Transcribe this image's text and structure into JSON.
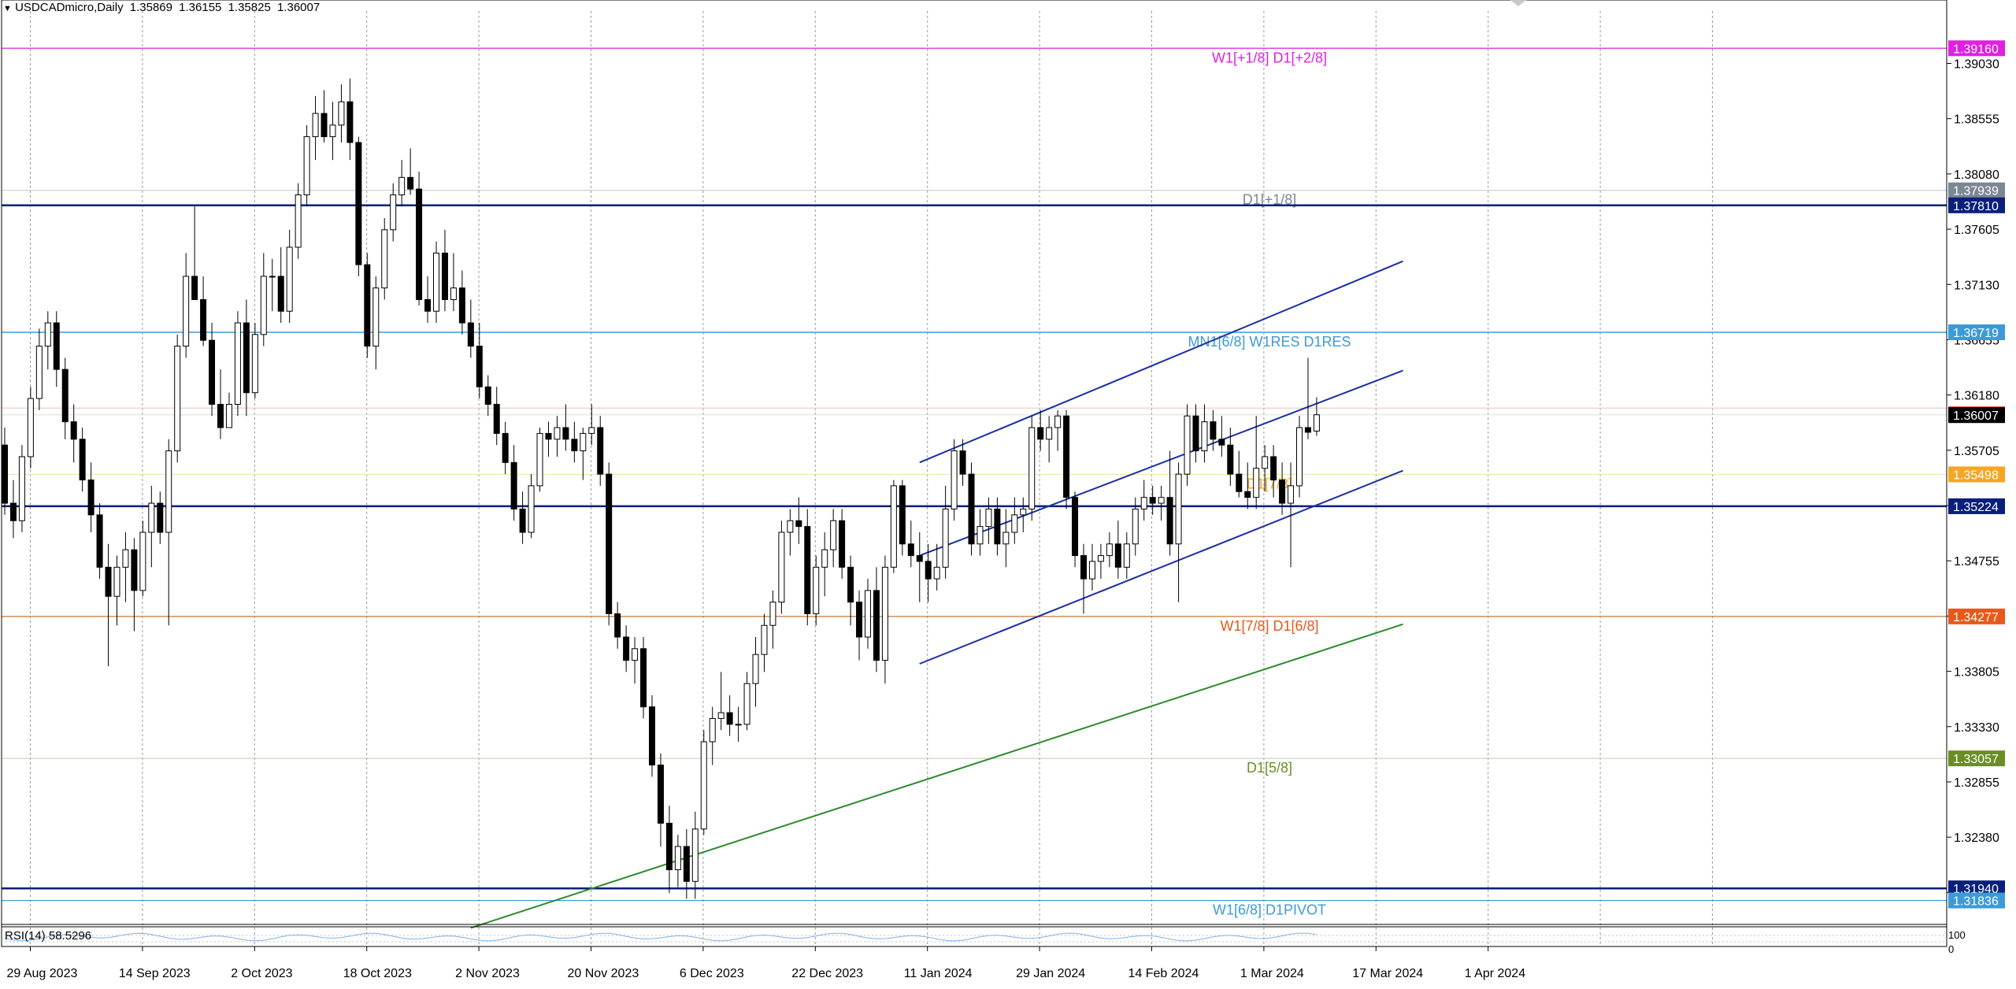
{
  "header": {
    "marker_icon": "triangle-down-icon",
    "symbol": "USDCADmicro,Daily",
    "open": "1.35869",
    "high": "1.36155",
    "low": "1.35825",
    "close": "1.36007"
  },
  "rsi_panel": {
    "label": "RSI(14) 58.5296",
    "scale_top": "100",
    "scale_bottom": "0"
  },
  "chart_data": {
    "type": "candlestick",
    "symbol": "USDCADmicro",
    "timeframe": "Daily",
    "ylim": [
      1.3163,
      1.3948
    ],
    "y_ticks": [
      "1.39030",
      "1.38555",
      "1.38080",
      "1.37605",
      "1.37130",
      "1.36655",
      "1.36180",
      "1.35705",
      "1.35230",
      "1.34755",
      "1.34280",
      "1.33805",
      "1.33330",
      "1.32855",
      "1.32380",
      "1.31905"
    ],
    "x_ticks": [
      "29 Aug 2023",
      "14 Sep 2023",
      "2 Oct 2023",
      "18 Oct 2023",
      "2 Nov 2023",
      "20 Nov 2023",
      "6 Dec 2023",
      "22 Dec 2023",
      "11 Jan 2024",
      "29 Jan 2024",
      "14 Feb 2024",
      "1 Mar 2024",
      "17 Mar 2024",
      "1 Apr 2024"
    ],
    "levels": [
      {
        "value": 1.3916,
        "tag": "1.39160",
        "label": "W1[+1/8] D1[+2/8]",
        "color": "#e020e0",
        "tag_bg": "#e020e0",
        "width": 1.3
      },
      {
        "value": 1.37939,
        "tag": "1.37939",
        "label": "D1[+1/8]",
        "color": "#c0c8c0",
        "tag_bg": "#7b8794",
        "width": 1
      },
      {
        "value": 1.3781,
        "tag": "1.37810",
        "label": "",
        "color": "#0a1f7a",
        "tag_bg": "#0a1f7a",
        "width": 2.5
      },
      {
        "value": 1.36719,
        "tag": "1.36719",
        "label": "MN1[6/8] W1RES D1RES",
        "color": "#3d9ad8",
        "tag_bg": "#3d9ad8",
        "width": 1.5
      },
      {
        "value": 1.36068,
        "tag": "",
        "label": "",
        "color": "#e3c7b8",
        "tag_bg": "#e83b1a",
        "width": 1
      },
      {
        "value": 1.36007,
        "tag": "1.36007",
        "label": "",
        "color": "#e8e8e8",
        "tag_bg": "#000000",
        "width": 0
      },
      {
        "value": 1.35498,
        "tag": "1.35498",
        "label": "D1[7/8]",
        "color": "#efe3a0",
        "tag_bg": "#f5a623",
        "width": 1
      },
      {
        "value": 1.35224,
        "tag": "1.35224",
        "label": "",
        "color": "#0a1f7a",
        "tag_bg": "#0a1f7a",
        "width": 2.5
      },
      {
        "value": 1.34277,
        "tag": "1.34277",
        "label": "W1[7/8] D1[6/8]",
        "color": "#c8773a",
        "tag_bg": "#e8581a",
        "width": 1.2
      },
      {
        "value": 1.33057,
        "tag": "1.33057",
        "label": "D1[5/8]",
        "color": "#c8cba8",
        "tag_bg": "#6b8e23",
        "width": 1
      },
      {
        "value": 1.3194,
        "tag": "1.31940",
        "label": "",
        "color": "#0a1f7a",
        "tag_bg": "#0a1f7a",
        "width": 2.5
      },
      {
        "value": 1.31836,
        "tag": "1.31836",
        "label": "W1[6/8] D1PIVOT",
        "color": "#3d9ad8",
        "tag_bg": "#3d9ad8",
        "width": 1.2
      }
    ],
    "trendlines": [
      {
        "from": [
          106,
          1.356
        ],
        "to": [
          162,
          1.3733
        ],
        "color": "#1a2fa0"
      },
      {
        "from": [
          106,
          1.348
        ],
        "to": [
          162,
          1.3639
        ],
        "color": "#1a2fa0"
      },
      {
        "from": [
          106,
          1.3387
        ],
        "to": [
          162,
          1.3553
        ],
        "color": "#1a2fa0"
      },
      {
        "from": [
          54,
          1.316
        ],
        "to": [
          162,
          1.3421
        ],
        "color": "#2e8b2e"
      }
    ],
    "candles": [
      [
        1.3575,
        1.359,
        1.3515,
        1.3525
      ],
      [
        1.3525,
        1.3545,
        1.3495,
        1.351
      ],
      [
        1.351,
        1.3575,
        1.35,
        1.3565
      ],
      [
        1.3565,
        1.3625,
        1.3555,
        1.3615
      ],
      [
        1.3615,
        1.3675,
        1.3605,
        1.366
      ],
      [
        1.366,
        1.369,
        1.364,
        1.368
      ],
      [
        1.368,
        1.369,
        1.3625,
        1.364
      ],
      [
        1.364,
        1.365,
        1.358,
        1.3595
      ],
      [
        1.3595,
        1.361,
        1.356,
        1.358
      ],
      [
        1.358,
        1.359,
        1.3535,
        1.3545
      ],
      [
        1.3545,
        1.356,
        1.35,
        1.3515
      ],
      [
        1.3515,
        1.3525,
        1.346,
        1.347
      ],
      [
        1.347,
        1.349,
        1.3385,
        1.3445
      ],
      [
        1.3445,
        1.348,
        1.342,
        1.347
      ],
      [
        1.347,
        1.35,
        1.344,
        1.3485
      ],
      [
        1.3485,
        1.3495,
        1.3415,
        1.345
      ],
      [
        1.345,
        1.351,
        1.3445,
        1.35
      ],
      [
        1.35,
        1.354,
        1.347,
        1.3525
      ],
      [
        1.3525,
        1.3535,
        1.349,
        1.35
      ],
      [
        1.35,
        1.358,
        1.342,
        1.357
      ],
      [
        1.357,
        1.367,
        1.356,
        1.366
      ],
      [
        1.366,
        1.374,
        1.365,
        1.372
      ],
      [
        1.372,
        1.378,
        1.37,
        1.37
      ],
      [
        1.37,
        1.372,
        1.366,
        1.3665
      ],
      [
        1.3665,
        1.368,
        1.36,
        1.361
      ],
      [
        1.361,
        1.364,
        1.358,
        1.359
      ],
      [
        1.359,
        1.362,
        1.359,
        1.361
      ],
      [
        1.361,
        1.369,
        1.36,
        1.368
      ],
      [
        1.368,
        1.37,
        1.36,
        1.362
      ],
      [
        1.362,
        1.368,
        1.3615,
        1.367
      ],
      [
        1.367,
        1.374,
        1.366,
        1.372
      ],
      [
        1.372,
        1.3735,
        1.369,
        1.372
      ],
      [
        1.372,
        1.3745,
        1.368,
        1.369
      ],
      [
        1.369,
        1.376,
        1.368,
        1.3745
      ],
      [
        1.3745,
        1.38,
        1.3735,
        1.379
      ],
      [
        1.379,
        1.385,
        1.378,
        1.384
      ],
      [
        1.384,
        1.3875,
        1.382,
        1.386
      ],
      [
        1.386,
        1.388,
        1.3835,
        1.384
      ],
      [
        1.384,
        1.387,
        1.382,
        1.385
      ],
      [
        1.385,
        1.3885,
        1.3835,
        1.387
      ],
      [
        1.387,
        1.389,
        1.382,
        1.3835
      ],
      [
        1.3835,
        1.384,
        1.372,
        1.373
      ],
      [
        1.373,
        1.374,
        1.365,
        1.366
      ],
      [
        1.366,
        1.372,
        1.364,
        1.371
      ],
      [
        1.371,
        1.377,
        1.37,
        1.376
      ],
      [
        1.376,
        1.38,
        1.375,
        1.379
      ],
      [
        1.379,
        1.382,
        1.378,
        1.3805
      ],
      [
        1.3805,
        1.383,
        1.379,
        1.3795
      ],
      [
        1.3795,
        1.381,
        1.3695,
        1.37
      ],
      [
        1.37,
        1.372,
        1.368,
        1.369
      ],
      [
        1.369,
        1.375,
        1.368,
        1.374
      ],
      [
        1.374,
        1.376,
        1.369,
        1.37
      ],
      [
        1.37,
        1.374,
        1.369,
        1.371
      ],
      [
        1.371,
        1.3725,
        1.367,
        1.368
      ],
      [
        1.368,
        1.37,
        1.365,
        1.366
      ],
      [
        1.366,
        1.368,
        1.3615,
        1.3625
      ],
      [
        1.3625,
        1.3635,
        1.36,
        1.361
      ],
      [
        1.361,
        1.3625,
        1.3575,
        1.3585
      ],
      [
        1.3585,
        1.3595,
        1.355,
        1.356
      ],
      [
        1.356,
        1.3575,
        1.351,
        1.352
      ],
      [
        1.352,
        1.3535,
        1.349,
        1.35
      ],
      [
        1.35,
        1.355,
        1.3495,
        1.354
      ],
      [
        1.354,
        1.359,
        1.3535,
        1.3585
      ],
      [
        1.3585,
        1.3595,
        1.3565,
        1.358
      ],
      [
        1.358,
        1.36,
        1.3565,
        1.359
      ],
      [
        1.359,
        1.361,
        1.357,
        1.358
      ],
      [
        1.358,
        1.3595,
        1.356,
        1.357
      ],
      [
        1.357,
        1.359,
        1.3545,
        1.3585
      ],
      [
        1.3585,
        1.361,
        1.3575,
        1.359
      ],
      [
        1.359,
        1.36,
        1.354,
        1.355
      ],
      [
        1.355,
        1.356,
        1.342,
        1.343
      ],
      [
        1.343,
        1.344,
        1.34,
        1.341
      ],
      [
        1.341,
        1.342,
        1.338,
        1.339
      ],
      [
        1.339,
        1.341,
        1.337,
        1.34
      ],
      [
        1.34,
        1.341,
        1.334,
        1.335
      ],
      [
        1.335,
        1.336,
        1.329,
        1.33
      ],
      [
        1.33,
        1.331,
        1.323,
        1.325
      ],
      [
        1.325,
        1.3265,
        1.319,
        1.321
      ],
      [
        1.321,
        1.324,
        1.3195,
        1.323
      ],
      [
        1.323,
        1.3245,
        1.3185,
        1.32
      ],
      [
        1.32,
        1.326,
        1.3185,
        1.3245
      ],
      [
        1.3245,
        1.333,
        1.324,
        1.332
      ],
      [
        1.332,
        1.335,
        1.33,
        1.334
      ],
      [
        1.334,
        1.338,
        1.333,
        1.3345
      ],
      [
        1.3345,
        1.336,
        1.3325,
        1.3335
      ],
      [
        1.3335,
        1.335,
        1.332,
        1.3335
      ],
      [
        1.3335,
        1.338,
        1.333,
        1.337
      ],
      [
        1.337,
        1.341,
        1.335,
        1.3395
      ],
      [
        1.3395,
        1.343,
        1.338,
        1.342
      ],
      [
        1.342,
        1.345,
        1.34,
        1.344
      ],
      [
        1.344,
        1.351,
        1.343,
        1.35
      ],
      [
        1.35,
        1.352,
        1.348,
        1.351
      ],
      [
        1.351,
        1.353,
        1.349,
        1.3505
      ],
      [
        1.3505,
        1.352,
        1.342,
        1.343
      ],
      [
        1.343,
        1.348,
        1.342,
        1.347
      ],
      [
        1.347,
        1.35,
        1.3445,
        1.3485
      ],
      [
        1.3485,
        1.352,
        1.347,
        1.351
      ],
      [
        1.351,
        1.352,
        1.346,
        1.347
      ],
      [
        1.347,
        1.348,
        1.342,
        1.344
      ],
      [
        1.344,
        1.345,
        1.339,
        1.341
      ],
      [
        1.341,
        1.346,
        1.34,
        1.345
      ],
      [
        1.345,
        1.347,
        1.338,
        1.339
      ],
      [
        1.339,
        1.348,
        1.337,
        1.347
      ],
      [
        1.347,
        1.3545,
        1.3465,
        1.354
      ],
      [
        1.354,
        1.3545,
        1.348,
        1.349
      ],
      [
        1.349,
        1.351,
        1.347,
        1.348
      ],
      [
        1.348,
        1.35,
        1.344,
        1.3475
      ],
      [
        1.3475,
        1.349,
        1.344,
        1.346
      ],
      [
        1.346,
        1.349,
        1.345,
        1.347
      ],
      [
        1.347,
        1.354,
        1.346,
        1.352
      ],
      [
        1.352,
        1.358,
        1.351,
        1.357
      ],
      [
        1.357,
        1.358,
        1.354,
        1.355
      ],
      [
        1.355,
        1.356,
        1.348,
        1.349
      ],
      [
        1.349,
        1.352,
        1.348,
        1.3505
      ],
      [
        1.3505,
        1.353,
        1.349,
        1.352
      ],
      [
        1.352,
        1.353,
        1.348,
        1.349
      ],
      [
        1.349,
        1.352,
        1.347,
        1.35
      ],
      [
        1.35,
        1.353,
        1.349,
        1.3515
      ],
      [
        1.3515,
        1.353,
        1.35,
        1.352
      ],
      [
        1.352,
        1.36,
        1.351,
        1.359
      ],
      [
        1.359,
        1.3605,
        1.357,
        1.358
      ],
      [
        1.358,
        1.36,
        1.356,
        1.359
      ],
      [
        1.359,
        1.3605,
        1.357,
        1.36
      ],
      [
        1.36,
        1.3605,
        1.352,
        1.353
      ],
      [
        1.353,
        1.3535,
        1.347,
        1.348
      ],
      [
        1.348,
        1.349,
        1.343,
        1.346
      ],
      [
        1.346,
        1.349,
        1.345,
        1.3475
      ],
      [
        1.3475,
        1.349,
        1.346,
        1.348
      ],
      [
        1.348,
        1.35,
        1.347,
        1.349
      ],
      [
        1.349,
        1.351,
        1.346,
        1.347
      ],
      [
        1.347,
        1.35,
        1.346,
        1.349
      ],
      [
        1.349,
        1.353,
        1.348,
        1.352
      ],
      [
        1.352,
        1.3545,
        1.351,
        1.353
      ],
      [
        1.353,
        1.354,
        1.3515,
        1.3525
      ],
      [
        1.3525,
        1.354,
        1.351,
        1.353
      ],
      [
        1.353,
        1.357,
        1.348,
        1.349
      ],
      [
        1.349,
        1.356,
        1.344,
        1.355
      ],
      [
        1.355,
        1.361,
        1.354,
        1.36
      ],
      [
        1.36,
        1.361,
        1.356,
        1.357
      ],
      [
        1.357,
        1.361,
        1.356,
        1.3595
      ],
      [
        1.3595,
        1.3605,
        1.357,
        1.358
      ],
      [
        1.358,
        1.36,
        1.3565,
        1.3575
      ],
      [
        1.3575,
        1.359,
        1.354,
        1.355
      ],
      [
        1.355,
        1.357,
        1.353,
        1.3535
      ],
      [
        1.3535,
        1.356,
        1.352,
        1.353
      ],
      [
        1.353,
        1.36,
        1.352,
        1.3555
      ],
      [
        1.3555,
        1.3575,
        1.3535,
        1.3565
      ],
      [
        1.3565,
        1.3575,
        1.353,
        1.3545
      ],
      [
        1.3545,
        1.356,
        1.3515,
        1.3525
      ],
      [
        1.3525,
        1.356,
        1.347,
        1.354
      ],
      [
        1.354,
        1.36,
        1.353,
        1.359
      ],
      [
        1.359,
        1.365,
        1.358,
        1.3586
      ],
      [
        1.3587,
        1.3616,
        1.3583,
        1.3601
      ]
    ]
  }
}
